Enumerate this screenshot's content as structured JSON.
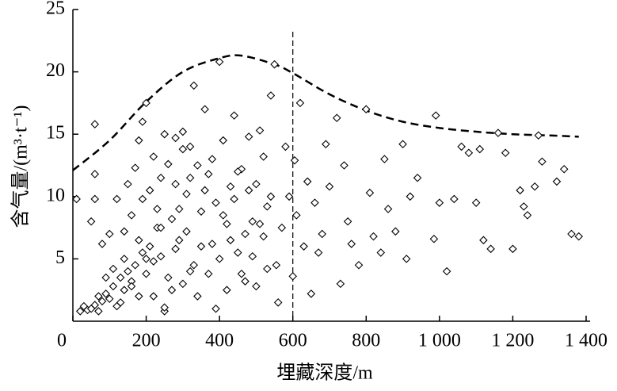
{
  "chart_data": {
    "type": "scatter",
    "x_label": "埋藏深度/m",
    "y_label": "含气量/(m³·t⁻¹)",
    "xlim": [
      0,
      1400
    ],
    "ylim": [
      0,
      25
    ],
    "xticks": [
      0,
      200,
      400,
      600,
      800,
      {
        "value": 1000,
        "label": "1 000"
      },
      {
        "value": 1200,
        "label": "1 200"
      },
      {
        "value": 1400,
        "label": "1 400"
      }
    ],
    "yticks": [
      5,
      10,
      15,
      20,
      25
    ],
    "vline": 600,
    "curve": {
      "x": [
        0,
        100,
        200,
        300,
        400,
        460,
        550,
        600,
        700,
        800,
        900,
        1000,
        1100,
        1200,
        1300,
        1380
      ],
      "values": [
        12.1,
        14.5,
        17.6,
        20,
        21.1,
        21.3,
        20.6,
        19.9,
        18.2,
        16.9,
        16,
        15.5,
        15.2,
        15,
        14.9,
        14.8
      ]
    },
    "series": [
      {
        "color": "#000000",
        "x": [
          10,
          20,
          30,
          40,
          50,
          60,
          70,
          80,
          90,
          100,
          110,
          120,
          130,
          140,
          150,
          160,
          170,
          180,
          190,
          200,
          210,
          220,
          230,
          240,
          250,
          250,
          60,
          60,
          60,
          50,
          80,
          100,
          120,
          140,
          160,
          170,
          180,
          190,
          200,
          210,
          220,
          230,
          240,
          250,
          260,
          270,
          280,
          290,
          300,
          310,
          320,
          330,
          340,
          350,
          360,
          370,
          380,
          390,
          400,
          410,
          420,
          430,
          440,
          450,
          460,
          470,
          480,
          490,
          500,
          510,
          520,
          530,
          540,
          550,
          555,
          560,
          570,
          580,
          590,
          600,
          605,
          610,
          620,
          630,
          640,
          650,
          660,
          670,
          680,
          690,
          700,
          720,
          730,
          740,
          750,
          760,
          780,
          800,
          810,
          820,
          840,
          850,
          860,
          880,
          900,
          910,
          920,
          940,
          990,
          1000,
          1020,
          1040,
          1060,
          1080,
          1100,
          1120,
          1140,
          1160,
          1180,
          1200,
          1220,
          1240,
          1260,
          1280,
          1320,
          1340,
          1360,
          1380,
          1270,
          1230,
          1110,
          985,
          260,
          270,
          280,
          290,
          300,
          310,
          320,
          330,
          340,
          350,
          360,
          370,
          380,
          390,
          400,
          410,
          420,
          430,
          440,
          450,
          460,
          470,
          480,
          490,
          500,
          510,
          520,
          530,
          540,
          300,
          320,
          280,
          240,
          220,
          200,
          180,
          160,
          140,
          130,
          110,
          90,
          70,
          150,
          190
        ],
        "values": [
          9.8,
          0.8,
          1.2,
          0.9,
          1.0,
          1.3,
          0.8,
          1.6,
          2.2,
          1.8,
          2.8,
          1.2,
          3.5,
          2.5,
          4.0,
          3.2,
          4.5,
          2.0,
          5.5,
          3.8,
          6.0,
          4.8,
          7.5,
          5.2,
          0.8,
          1.1,
          15.8,
          11.8,
          9.8,
          8.0,
          6.2,
          7.0,
          9.8,
          5.0,
          8.5,
          12.3,
          14.5,
          16.0,
          17.5,
          10.5,
          13.2,
          9.0,
          11.5,
          15.0,
          12.6,
          8.2,
          14.7,
          6.5,
          13.8,
          10.2,
          4.0,
          18.9,
          12.5,
          8.8,
          17.0,
          11.8,
          6.2,
          9.5,
          20.8,
          14.5,
          7.8,
          10.8,
          16.5,
          5.5,
          12.2,
          3.2,
          14.8,
          8.0,
          11.0,
          15.3,
          6.8,
          9.2,
          18.1,
          20.6,
          4.5,
          1.5,
          7.5,
          14.0,
          10.0,
          3.6,
          12.9,
          8.5,
          17.5,
          6.0,
          11.2,
          2.2,
          9.5,
          5.5,
          7.0,
          14.2,
          10.8,
          16.3,
          3.0,
          12.5,
          8.0,
          6.2,
          4.5,
          17.0,
          10.3,
          6.8,
          5.5,
          13.0,
          9.0,
          7.2,
          14.2,
          5.0,
          10.0,
          11.5,
          16.5,
          9.5,
          4.0,
          9.8,
          14.0,
          13.5,
          9.5,
          6.5,
          5.8,
          15.1,
          13.5,
          5.8,
          10.5,
          8.5,
          10.8,
          12.8,
          11.2,
          12.2,
          7.0,
          6.8,
          14.9,
          9.2,
          13.8,
          6.6,
          3.5,
          2.5,
          5.8,
          9.0,
          3.0,
          7.2,
          11.5,
          4.5,
          2.0,
          6.0,
          10.5,
          3.8,
          13.0,
          1.0,
          5.0,
          8.5,
          2.5,
          6.5,
          9.8,
          12.0,
          3.8,
          7.0,
          10.5,
          5.2,
          2.8,
          7.8,
          13.2,
          4.2,
          10.0,
          15.2,
          14.0,
          11.0,
          7.5,
          2.0,
          5.0,
          6.5,
          2.8,
          7.2,
          1.5,
          4.2,
          3.5,
          2.0,
          11.0,
          9.8
        ]
      }
    ]
  }
}
